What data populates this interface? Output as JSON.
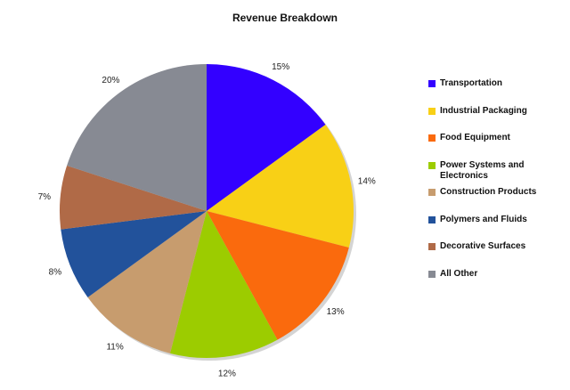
{
  "chart_data": {
    "type": "pie",
    "title": "Revenue Breakdown",
    "legend_position": "right",
    "slices": [
      {
        "label": "Transportation",
        "value": 15,
        "value_label": "15%",
        "color": "#3300ff"
      },
      {
        "label": "Industrial Packaging",
        "value": 14,
        "value_label": "14%",
        "color": "#f8d016"
      },
      {
        "label": "Food Equipment",
        "value": 13,
        "value_label": "13%",
        "color": "#fa6a0d"
      },
      {
        "label": "Power Systems and Electronics",
        "value": 12,
        "value_label": "12%",
        "color": "#9ccc00"
      },
      {
        "label": "Construction Products",
        "value": 11,
        "value_label": "11%",
        "color": "#c79c6e"
      },
      {
        "label": "Polymers and Fluids",
        "value": 8,
        "value_label": "8%",
        "color": "#22529b"
      },
      {
        "label": "Decorative Surfaces",
        "value": 7,
        "value_label": "7%",
        "color": "#b06a47"
      },
      {
        "label": "All Other",
        "value": 20,
        "value_label": "20%",
        "color": "#878a93"
      }
    ]
  }
}
